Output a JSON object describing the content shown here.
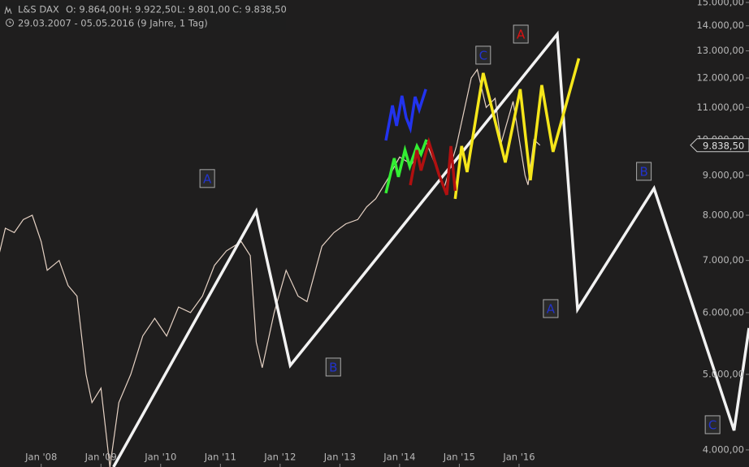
{
  "chart_data": {
    "type": "line",
    "header": {
      "symbol": "L&S DAX",
      "ohlc": [
        "O: 9.864,00",
        "H: 9.922,50",
        "L: 9.801,00",
        "C: 9.838,50"
      ],
      "range": "29.03.2007 - 05.05.2016 (9 Jahre, 1 Tag)"
    },
    "log_y": true,
    "xlim": [
      2007.31,
      2019.85
    ],
    "ylim": [
      3803,
      15108
    ],
    "xticks": [
      {
        "value": 2008,
        "label": "Jan '08"
      },
      {
        "value": 2009,
        "label": "Jan '09"
      },
      {
        "value": 2010,
        "label": "Jan '10"
      },
      {
        "value": 2011,
        "label": "Jan '11"
      },
      {
        "value": 2012,
        "label": "Jan '12"
      },
      {
        "value": 2013,
        "label": "Jan '13"
      },
      {
        "value": 2014,
        "label": "Jan '14"
      },
      {
        "value": 2015,
        "label": "Jan '15"
      },
      {
        "value": 2016,
        "label": "Jan '16"
      }
    ],
    "yticks": [
      {
        "value": 4000,
        "label": "4.000,00"
      },
      {
        "value": 5000,
        "label": "5.000,00"
      },
      {
        "value": 6000,
        "label": "6.000,00"
      },
      {
        "value": 7000,
        "label": "7.000,00"
      },
      {
        "value": 8000,
        "label": "8.000,00"
      },
      {
        "value": 9000,
        "label": "9.000,00"
      },
      {
        "value": 10000,
        "label": "10.000,00"
      },
      {
        "value": 11000,
        "label": "11.000,00"
      },
      {
        "value": 12000,
        "label": "12.000,00"
      },
      {
        "value": 13000,
        "label": "13.000,00"
      },
      {
        "value": 14000,
        "label": "14.000,00"
      },
      {
        "value": 15000,
        "label": "15.000,00"
      }
    ],
    "last_price": {
      "value": 9838.5,
      "label": "9.838,50"
    },
    "series": [
      {
        "color": "#e6d2c4",
        "x": [
          2007.25,
          2007.4,
          2007.55,
          2007.7,
          2007.85,
          2008.0,
          2008.1,
          2008.3,
          2008.45,
          2008.6,
          2008.75,
          2008.85,
          2009.0,
          2009.15,
          2009.3,
          2009.5,
          2009.7,
          2009.9,
          2010.1,
          2010.3,
          2010.5,
          2010.7,
          2010.9,
          2011.1,
          2011.35,
          2011.5,
          2011.6,
          2011.7,
          2011.9,
          2012.1,
          2012.3,
          2012.45,
          2012.7,
          2012.9,
          2013.1,
          2013.3,
          2013.45,
          2013.6,
          2013.8,
          2014.0,
          2014.2,
          2014.45,
          2014.75,
          2014.95,
          2015.2,
          2015.3,
          2015.45,
          2015.6,
          2015.7,
          2015.9,
          2016.1,
          2016.15,
          2016.25,
          2016.35
        ],
        "values": [
          6900,
          7700,
          7600,
          7900,
          8000,
          7400,
          6800,
          7000,
          6500,
          6300,
          5000,
          4600,
          4800,
          3800,
          4600,
          5000,
          5600,
          5900,
          5600,
          6100,
          6000,
          6300,
          6900,
          7200,
          7400,
          7100,
          5500,
          5100,
          6000,
          6800,
          6300,
          6200,
          7300,
          7600,
          7800,
          7900,
          8200,
          8400,
          8900,
          9500,
          9300,
          9900,
          8700,
          9800,
          12000,
          12300,
          11000,
          11300,
          9900,
          11200,
          9000,
          8750,
          10000,
          9838.5
        ]
      },
      {
        "color": "#f2f2f2",
        "x": [
          2009.21,
          2011.6,
          2012.17,
          2016.64,
          2016.98,
          2018.26,
          2019.6,
          2019.85
        ],
        "values": [
          3803,
          8094,
          5133,
          13660,
          6058,
          8661,
          4237,
          5733
        ]
      },
      {
        "color": "#f5e61a",
        "x": [
          2014.93,
          2015.04,
          2015.13,
          2015.4,
          2015.77,
          2016.02,
          2016.19,
          2016.38,
          2016.57,
          2017.0
        ],
        "values": [
          8396,
          9813,
          9087,
          12177,
          9351,
          11608,
          8871,
          11750,
          9648,
          12715
        ]
      },
      {
        "color": "#2233ee",
        "x": [
          2013.77,
          2013.88,
          2013.95,
          2014.04,
          2014.11,
          2014.18,
          2014.26,
          2014.33,
          2014.44
        ],
        "values": [
          9979,
          11064,
          10419,
          11387,
          10671,
          10344,
          11350,
          10932,
          11608
        ]
      },
      {
        "color": "#33ee33",
        "x": [
          2013.77,
          2013.91,
          2013.98,
          2014.09,
          2014.17,
          2014.29,
          2014.36,
          2014.45
        ],
        "values": [
          8537,
          9465,
          8960,
          9697,
          9240,
          9813,
          9580,
          10004
        ]
      },
      {
        "color": "#b01010",
        "x": [
          2014.18,
          2014.29,
          2014.36,
          2014.49,
          2014.66,
          2014.79,
          2014.86,
          2014.93
        ],
        "values": [
          8744,
          9697,
          9131,
          9933,
          9021,
          8497,
          9813,
          8600
        ]
      }
    ],
    "annotations": [
      {
        "text": "A",
        "x": 2010.78,
        "y": 8916,
        "color": "#2233cc"
      },
      {
        "text": "B",
        "x": 2012.89,
        "y": 5109,
        "color": "#2233cc"
      },
      {
        "text": "C",
        "x": 2015.4,
        "y": 12836,
        "color": "#2233cc"
      },
      {
        "text": "A",
        "x": 2016.03,
        "y": 13660,
        "color": "#dd1111"
      },
      {
        "text": "A",
        "x": 2016.53,
        "y": 6072,
        "color": "#2233cc"
      },
      {
        "text": "B",
        "x": 2018.09,
        "y": 9108,
        "color": "#2233cc"
      },
      {
        "text": "C",
        "x": 2019.24,
        "y": 4309,
        "color": "#2233cc"
      }
    ]
  }
}
